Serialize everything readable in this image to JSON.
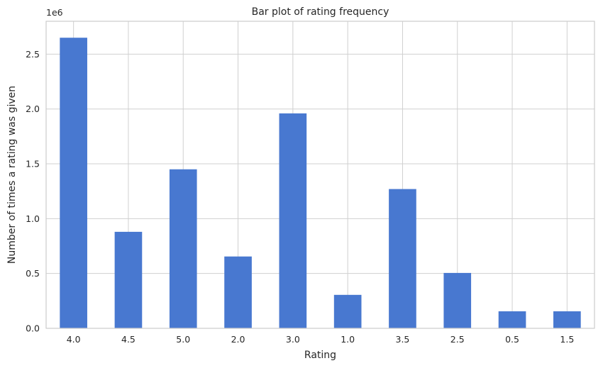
{
  "chart_data": {
    "type": "bar",
    "title": "Bar plot of rating frequency",
    "xlabel": "Rating",
    "ylabel": "Number of times a rating was given",
    "y_offset_label": "1e6",
    "categories": [
      "4.0",
      "4.5",
      "5.0",
      "2.0",
      "3.0",
      "1.0",
      "3.5",
      "2.5",
      "0.5",
      "1.5"
    ],
    "values": [
      2650000,
      880000,
      1450000,
      655000,
      1960000,
      305000,
      1270000,
      505000,
      155000,
      155000
    ],
    "ylim": [
      0,
      2800000
    ],
    "yticks": [
      0,
      500000,
      1000000,
      1500000,
      2000000,
      2500000
    ],
    "ytick_labels": [
      "0.0",
      "0.5",
      "1.0",
      "1.5",
      "2.0",
      "2.5"
    ],
    "grid": true,
    "bar_color": "#4878d0"
  }
}
